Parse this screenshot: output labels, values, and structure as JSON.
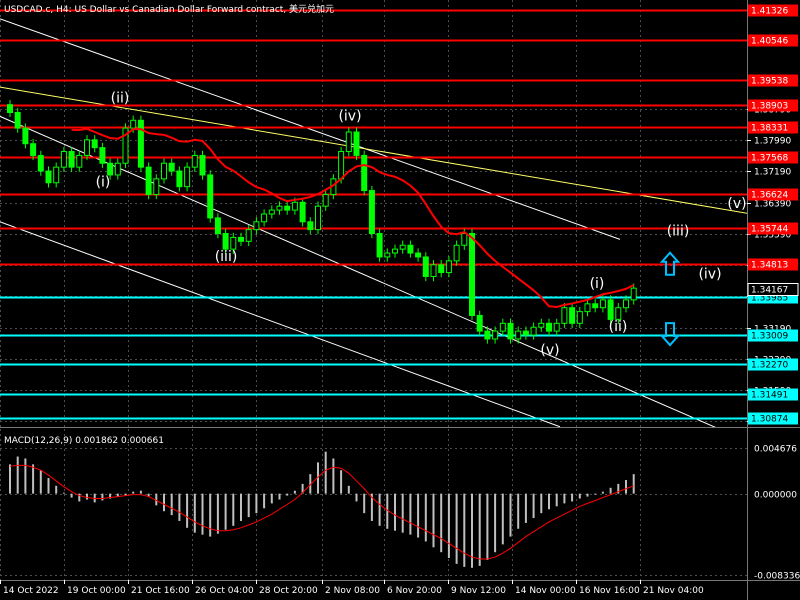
{
  "window": {
    "title": "USDCAD.c, H4:  US Dollar vs Canadian Dollar Forward contract, 美元兑加元"
  },
  "macd": {
    "label": "MACD(12,26,9) 0.001862 0.000661",
    "colors": {
      "histogram": "#c0c0c0",
      "signal": "#ff0000"
    }
  },
  "colors": {
    "background": "#000000",
    "candles": "#00ff00",
    "grid": "#4d4d4d",
    "resistance": "#ff0000",
    "support": "#00ffff",
    "channel": "#ffffff",
    "trendline": "#ffff66",
    "ma": "#ff0000",
    "arrow": "#00bfff"
  },
  "chart_data": [
    {
      "type": "candlestick",
      "symbol": "USDCAD.c",
      "timeframe": "H4",
      "ylim": [
        1.3067,
        1.4153
      ],
      "y_ticks": [
        1.3879,
        1.3799,
        1.3719,
        1.3639,
        1.3559,
        1.3479,
        1.3399,
        1.3319,
        1.3239,
        1.3159,
        1.3079
      ],
      "x_ticks": [
        "14 Oct 2022",
        "19 Oct 00:00",
        "21 Oct 16:00",
        "26 Oct 04:00",
        "28 Oct 20:00",
        "2 Nov 08:00",
        "6 Nov 20:00",
        "9 Nov 12:00",
        "14 Nov 00:00",
        "16 Nov 16:00",
        "21 Nov 04:00"
      ],
      "current_price": "1.34167",
      "resistance_levels": [
        "1.41326",
        "1.40546",
        "1.39538",
        "1.38903",
        "1.38331",
        "1.37568",
        "1.36624",
        "1.35744",
        "1.34813"
      ],
      "support_levels": [
        "1.33985",
        "1.33009",
        "1.32270",
        "1.31491",
        "1.30874"
      ],
      "close_series": [
        1.387,
        1.383,
        1.379,
        1.376,
        1.372,
        1.369,
        1.373,
        1.377,
        1.373,
        1.376,
        1.38,
        1.378,
        1.374,
        1.371,
        1.374,
        1.383,
        1.385,
        1.373,
        1.366,
        1.37,
        1.374,
        1.372,
        1.368,
        1.373,
        1.376,
        1.371,
        1.36,
        1.356,
        1.352,
        1.355,
        1.354,
        1.357,
        1.359,
        1.361,
        1.362,
        1.363,
        1.362,
        1.364,
        1.359,
        1.357,
        1.363,
        1.366,
        1.37,
        1.377,
        1.382,
        1.376,
        1.367,
        1.356,
        1.35,
        1.351,
        1.352,
        1.353,
        1.351,
        1.35,
        1.345,
        1.348,
        1.346,
        1.349,
        1.353,
        1.356,
        1.335,
        1.331,
        1.329,
        1.331,
        1.333,
        1.329,
        1.331,
        1.33,
        1.332,
        1.333,
        1.331,
        1.333,
        1.337,
        1.333,
        1.336,
        1.338,
        1.337,
        1.339,
        1.334,
        1.337,
        1.339,
        1.342
      ],
      "wave_labels": [
        {
          "text": "(ii)",
          "price": 1.3895
        },
        {
          "text": "(i)",
          "price": 1.368
        },
        {
          "text": "(iii)",
          "price": 1.349
        },
        {
          "text": "(iv)",
          "price": 1.385
        },
        {
          "text": "(i)",
          "price": 1.342
        },
        {
          "text": "(ii)",
          "price": 1.331
        },
        {
          "text": "(v)",
          "price": 1.325
        },
        {
          "text": "(iii)",
          "price": 1.3555
        },
        {
          "text": "(iv)",
          "price": 1.3445
        },
        {
          "text": "(v)",
          "price": 1.3625
        }
      ]
    },
    {
      "type": "histogram",
      "name": "MACD(12,26,9)",
      "ylim": [
        -0.008336,
        0.004676
      ],
      "y_ticks": [
        "0.004676",
        "0.000000",
        "-0.008336"
      ],
      "histogram_values": [
        0.003,
        0.0038,
        0.0036,
        0.003,
        0.0024,
        0.0016,
        0.0008,
        0.0001,
        -0.0004,
        -0.0008,
        -0.0006,
        -0.0009,
        -0.0007,
        -0.0005,
        -0.0003,
        -0.0002,
        0.0002,
        0.0003,
        -0.0003,
        -0.0012,
        -0.0018,
        -0.0022,
        -0.0028,
        -0.0035,
        -0.004,
        -0.0042,
        -0.0044,
        -0.0041,
        -0.0037,
        -0.0033,
        -0.0028,
        -0.0024,
        -0.002,
        -0.0015,
        -0.001,
        -0.0006,
        -0.0002,
        0.0003,
        0.001,
        0.002,
        0.0032,
        0.0043,
        0.0036,
        0.0024,
        0.0008,
        -0.0008,
        -0.002,
        -0.0028,
        -0.0033,
        -0.0036,
        -0.0038,
        -0.004,
        -0.0042,
        -0.0045,
        -0.0049,
        -0.0055,
        -0.006,
        -0.0066,
        -0.0072,
        -0.0075,
        -0.0076,
        -0.0074,
        -0.0068,
        -0.006,
        -0.0052,
        -0.0044,
        -0.0036,
        -0.003,
        -0.0025,
        -0.002,
        -0.0016,
        -0.0013,
        -0.001,
        -0.0008,
        -0.0005,
        -0.0003,
        -0.0001,
        0.0002,
        0.0006,
        0.001,
        0.0014,
        0.002
      ],
      "signal_values": [
        0.0028,
        0.0029,
        0.0029,
        0.0027,
        0.0024,
        0.0019,
        0.0013,
        0.0007,
        0.0002,
        -0.0002,
        -0.0004,
        -0.0005,
        -0.0005,
        -0.0004,
        -0.0003,
        -0.0002,
        -0.0001,
        -0.0001,
        -0.0003,
        -0.0007,
        -0.0011,
        -0.0015,
        -0.0019,
        -0.0024,
        -0.0029,
        -0.0033,
        -0.0036,
        -0.0038,
        -0.0038,
        -0.0037,
        -0.0035,
        -0.0032,
        -0.0029,
        -0.0025,
        -0.0021,
        -0.0016,
        -0.0011,
        -0.0006,
        0.0001,
        0.0009,
        0.0017,
        0.0024,
        0.0027,
        0.0026,
        0.0021,
        0.0013,
        0.0005,
        -0.0004,
        -0.0011,
        -0.0017,
        -0.0022,
        -0.0026,
        -0.003,
        -0.0034,
        -0.0038,
        -0.0042,
        -0.0046,
        -0.0051,
        -0.0056,
        -0.0061,
        -0.0065,
        -0.0067,
        -0.0067,
        -0.0065,
        -0.0061,
        -0.0056,
        -0.005,
        -0.0044,
        -0.0039,
        -0.0034,
        -0.0029,
        -0.0025,
        -0.0021,
        -0.0017,
        -0.0013,
        -0.001,
        -0.0007,
        -0.0004,
        -0.0001,
        0.0002,
        0.0005,
        0.0008
      ]
    }
  ]
}
